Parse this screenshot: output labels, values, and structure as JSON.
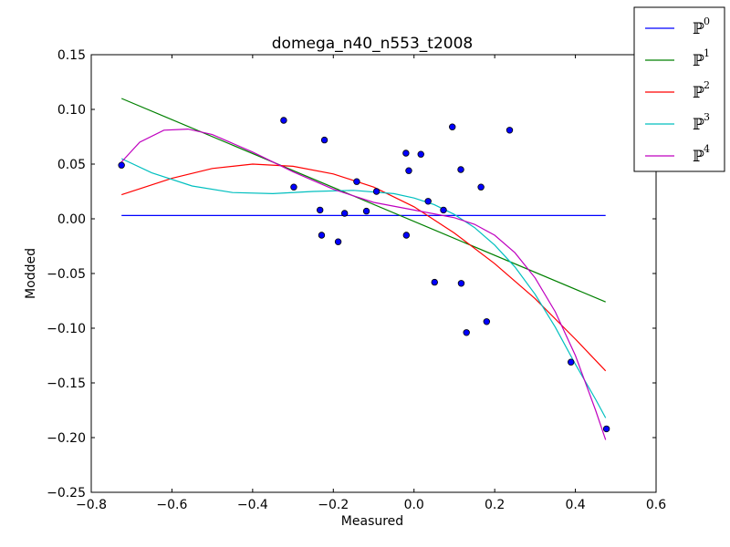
{
  "chart_data": {
    "type": "scatter",
    "title": "domega_n40_n553_t2008",
    "xlabel": "Measured",
    "ylabel": "Modded",
    "xlim": [
      -0.8,
      0.6
    ],
    "ylim": [
      -0.25,
      0.15
    ],
    "xticks": [
      "−0.8",
      "−0.6",
      "−0.4",
      "−0.2",
      "0.0",
      "0.2",
      "0.4",
      "0.6"
    ],
    "xtick_values": [
      -0.8,
      -0.6,
      -0.4,
      -0.2,
      0.0,
      0.2,
      0.4,
      0.6
    ],
    "yticks": [
      "0.15",
      "0.10",
      "0.05",
      "0.00",
      "−0.05",
      "−0.10",
      "−0.15",
      "−0.20",
      "−0.25"
    ],
    "ytick_values": [
      0.15,
      0.1,
      0.05,
      0.0,
      -0.05,
      -0.1,
      -0.15,
      -0.2,
      -0.25
    ],
    "grid": false,
    "legend_position": "top-right, outside axes",
    "points": {
      "color": "#0000ff",
      "x": [
        -0.725,
        -0.323,
        -0.298,
        -0.222,
        -0.233,
        -0.229,
        -0.188,
        -0.172,
        -0.142,
        -0.118,
        -0.093,
        -0.02,
        -0.019,
        -0.013,
        0.017,
        0.035,
        0.051,
        0.073,
        0.095,
        0.116,
        0.117,
        0.13,
        0.166,
        0.18,
        0.237,
        0.389,
        0.477
      ],
      "y": [
        0.049,
        0.09,
        0.029,
        0.072,
        0.008,
        -0.015,
        -0.021,
        0.005,
        0.034,
        0.007,
        0.025,
        0.06,
        -0.015,
        0.044,
        0.059,
        0.016,
        -0.058,
        0.008,
        0.084,
        0.045,
        -0.059,
        -0.104,
        0.029,
        -0.094,
        0.081,
        -0.131,
        -0.192
      ]
    },
    "series": [
      {
        "label_base": "ℙ",
        "label_sup": "0",
        "color": "#0000ff",
        "x": [
          -0.725,
          0.475
        ],
        "y": [
          0.003,
          0.003
        ]
      },
      {
        "label_base": "ℙ",
        "label_sup": "1",
        "color": "#008000",
        "x": [
          -0.725,
          0.475
        ],
        "y": [
          0.11,
          -0.076
        ]
      },
      {
        "label_base": "ℙ",
        "label_sup": "2",
        "color": "#ff0000",
        "x": [
          -0.725,
          -0.6,
          -0.5,
          -0.4,
          -0.3,
          -0.2,
          -0.1,
          0.0,
          0.1,
          0.2,
          0.3,
          0.4,
          0.475
        ],
        "y": [
          0.022,
          0.037,
          0.046,
          0.05,
          0.048,
          0.041,
          0.029,
          0.011,
          -0.013,
          -0.041,
          -0.073,
          -0.11,
          -0.139
        ]
      },
      {
        "label_base": "ℙ",
        "label_sup": "3",
        "color": "#00bfbf",
        "x": [
          -0.725,
          -0.65,
          -0.55,
          -0.45,
          -0.35,
          -0.25,
          -0.15,
          -0.05,
          0.0,
          0.05,
          0.1,
          0.15,
          0.2,
          0.25,
          0.3,
          0.35,
          0.4,
          0.45,
          0.475
        ],
        "y": [
          0.055,
          0.042,
          0.03,
          0.024,
          0.023,
          0.025,
          0.026,
          0.023,
          0.019,
          0.013,
          0.004,
          -0.008,
          -0.024,
          -0.044,
          -0.069,
          -0.099,
          -0.133,
          -0.165,
          -0.182
        ]
      },
      {
        "label_base": "ℙ",
        "label_sup": "4",
        "color": "#bf00bf",
        "x": [
          -0.725,
          -0.68,
          -0.62,
          -0.56,
          -0.5,
          -0.4,
          -0.3,
          -0.2,
          -0.1,
          0.0,
          0.1,
          0.15,
          0.2,
          0.25,
          0.3,
          0.35,
          0.4,
          0.45,
          0.475
        ],
        "y": [
          0.052,
          0.07,
          0.081,
          0.082,
          0.077,
          0.061,
          0.043,
          0.027,
          0.015,
          0.008,
          0.001,
          -0.005,
          -0.015,
          -0.031,
          -0.054,
          -0.085,
          -0.125,
          -0.175,
          -0.202
        ]
      }
    ]
  }
}
